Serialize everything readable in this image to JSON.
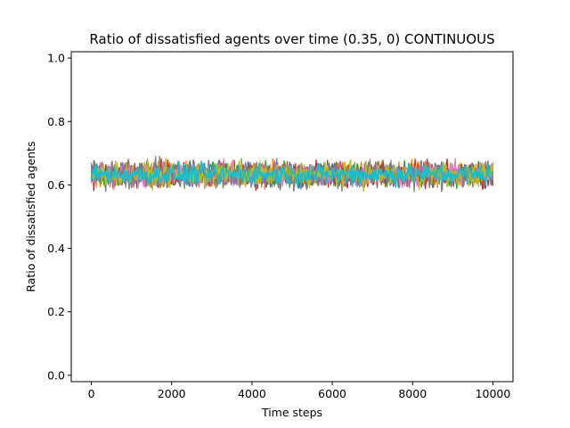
{
  "chart_data": {
    "type": "line",
    "title": "Ratio of dissatisfied agents over time (0.35, 0) CONTINUOUS",
    "xlabel": "Time steps",
    "ylabel": "Ratio of dissatisfied agents",
    "xlim": [
      -500,
      10500
    ],
    "ylim": [
      -0.02,
      1.02
    ],
    "x_ticks": [
      0,
      2000,
      4000,
      6000,
      8000,
      10000
    ],
    "y_ticks": [
      0.0,
      0.2,
      0.4,
      0.6,
      0.8,
      1.0
    ],
    "y_tick_labels": [
      "0.0",
      "0.2",
      "0.4",
      "0.6",
      "0.8",
      "1.0"
    ],
    "x_range": [
      0,
      10000
    ],
    "grid": false,
    "legend": "none",
    "series": [
      {
        "color": "#1f77b4",
        "mean": 0.633,
        "band": [
          0.588,
          0.678
        ]
      },
      {
        "color": "#ff7f0e",
        "mean": 0.633,
        "band": [
          0.582,
          0.684
        ]
      },
      {
        "color": "#2ca02c",
        "mean": 0.633,
        "band": [
          0.585,
          0.681
        ]
      },
      {
        "color": "#d62728",
        "mean": 0.633,
        "band": [
          0.58,
          0.69
        ]
      },
      {
        "color": "#9467bd",
        "mean": 0.633,
        "band": [
          0.586,
          0.679
        ]
      },
      {
        "color": "#8c564b",
        "mean": 0.633,
        "band": [
          0.583,
          0.683
        ]
      },
      {
        "color": "#e377c2",
        "mean": 0.633,
        "band": [
          0.578,
          0.686
        ]
      },
      {
        "color": "#7f7f7f",
        "mean": 0.633,
        "band": [
          0.562,
          0.69
        ]
      },
      {
        "color": "#bcbd22",
        "mean": 0.633,
        "band": [
          0.58,
          0.684
        ]
      },
      {
        "color": "#17becf",
        "mean": 0.633,
        "band": [
          0.59,
          0.676
        ]
      }
    ]
  }
}
